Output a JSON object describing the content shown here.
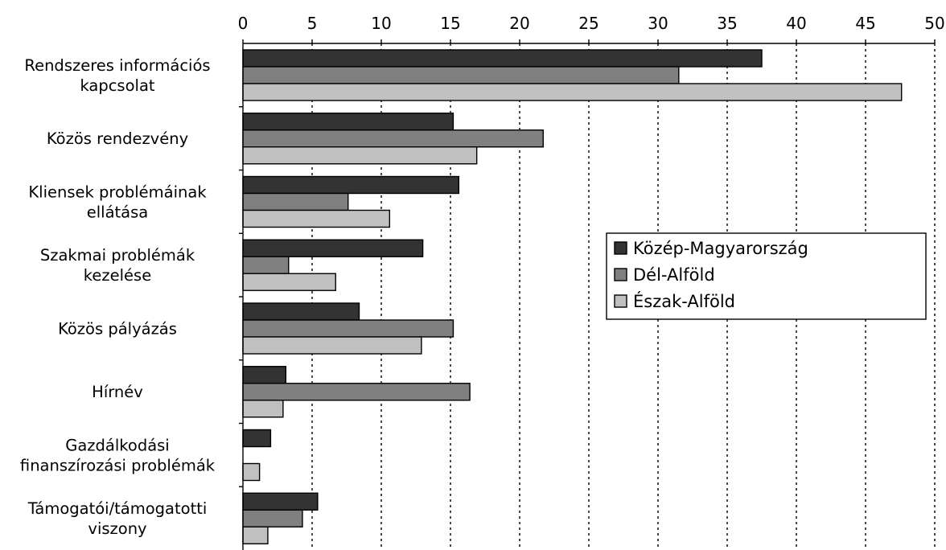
{
  "chart_data": {
    "type": "bar",
    "orientation": "horizontal",
    "title": "",
    "xlabel": "",
    "ylabel": "",
    "xlim": [
      0,
      50
    ],
    "x_ticks": [
      0,
      5,
      10,
      15,
      20,
      25,
      30,
      35,
      40,
      45,
      50
    ],
    "x_tick_labels": [
      "0",
      "5",
      "10",
      "15",
      "20",
      "25",
      "30",
      "35",
      "40",
      "45",
      "50"
    ],
    "x_axis_position": "top",
    "grid": "vertical dashed",
    "legend_position": "center-right",
    "categories": [
      [
        "Rendszeres információs",
        "kapcsolat"
      ],
      [
        "Közös rendezvény"
      ],
      [
        "Kliensek problémáinak",
        "ellátása"
      ],
      [
        "Szakmai problémák",
        "kezelése"
      ],
      [
        "Közös pályázás"
      ],
      [
        "Hírnév"
      ],
      [
        "Gazdálkodási",
        "finanszírozási problémák"
      ],
      [
        "Támogatói/támogatotti",
        "viszony"
      ]
    ],
    "series": [
      {
        "name": "Közép-Magyarország",
        "color": "#333333",
        "values": [
          37.5,
          15.2,
          15.6,
          13.0,
          8.4,
          3.1,
          2.0,
          5.4
        ]
      },
      {
        "name": "Dél-Alföld",
        "color": "#808080",
        "values": [
          31.5,
          21.7,
          7.6,
          3.3,
          15.2,
          16.4,
          0,
          4.3
        ]
      },
      {
        "name": "Észak-Alföld",
        "color": "#c0c0c0",
        "values": [
          47.6,
          16.9,
          10.6,
          6.7,
          12.9,
          2.9,
          1.2,
          1.8
        ]
      }
    ]
  }
}
